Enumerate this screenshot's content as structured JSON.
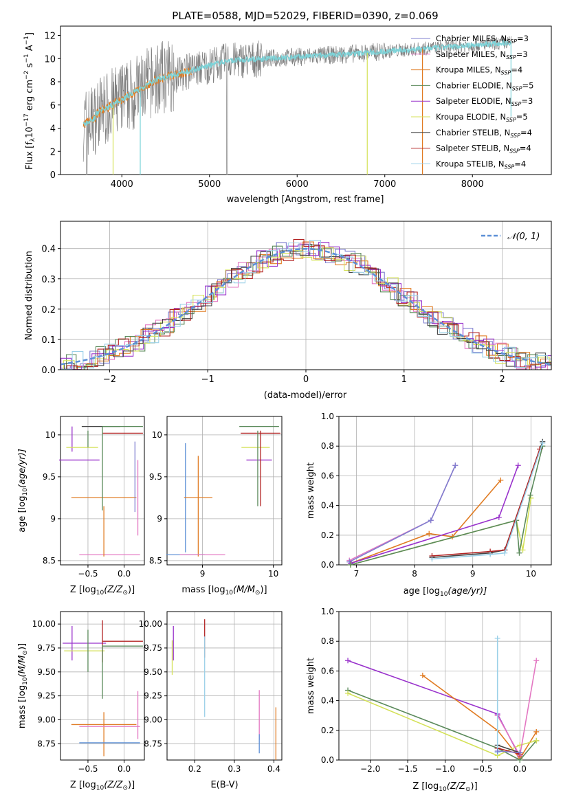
{
  "chart_data": [
    {
      "type": "line",
      "title": "PLATE=0588, MJD=52029, FIBERID=0390, z=0.069",
      "xlabel": "wavelength [Angstrom, rest frame]",
      "ylabel_main": "Flux [f",
      "ylabel_lambda": "λ",
      "ylabel_rest": "10",
      "ylabel_exp1": "−17",
      "ylabel_mid": " erg cm",
      "ylabel_exp2": "−2",
      "ylabel_s": " s",
      "ylabel_exp3": "−1",
      "ylabel_A": " A",
      "ylabel_exp4": "−1",
      "ylabel_end": "]",
      "xlim": [
        3300,
        8900
      ],
      "ylim": [
        0,
        12.8
      ],
      "xticks": [
        4000,
        5000,
        6000,
        7000,
        8000
      ],
      "yticks": [
        0,
        2,
        4,
        6,
        8,
        10,
        12
      ],
      "legend_position": "right",
      "series": [
        {
          "name": "Chabrier MILES, N",
          "sub": "SSP",
          "suffix": "=3",
          "color": "#7f7fcf"
        },
        {
          "name": "Salpeter MILES, N",
          "sub": "SSP",
          "suffix": "=3",
          "color": "#e377c2"
        },
        {
          "name": "Kroupa MILES, N",
          "sub": "SSP",
          "suffix": "=4",
          "color": "#e07b22"
        },
        {
          "name": "Chabrier ELODIE, N",
          "sub": "SSP",
          "suffix": "=5",
          "color": "#5b8a5b"
        },
        {
          "name": "Salpeter ELODIE, N",
          "sub": "SSP",
          "suffix": "=3",
          "color": "#9932cc"
        },
        {
          "name": "Kroupa ELODIE, N",
          "sub": "SSP",
          "suffix": "=5",
          "color": "#d4e157"
        },
        {
          "name": "Chabrier STELIB, N",
          "sub": "SSP",
          "suffix": "=4",
          "color": "#444444"
        },
        {
          "name": "Salpeter STELIB, N",
          "sub": "SSP",
          "suffix": "=4",
          "color": "#b22222"
        },
        {
          "name": "Kroupa STELIB, N",
          "sub": "SSP",
          "suffix": "=4",
          "color": "#9ad0e8"
        }
      ],
      "data_color": "#808080",
      "model_color": "#7dd3d8"
    },
    {
      "type": "line",
      "xlabel": "(data-model)/error",
      "ylabel": "Normed distribution",
      "xlim": [
        -2.5,
        2.5
      ],
      "ylim": [
        0,
        0.49
      ],
      "xticks": [
        -2,
        -1,
        0,
        1,
        2
      ],
      "yticks": [
        0.0,
        0.1,
        0.2,
        0.3,
        0.4
      ],
      "grid": true,
      "legend_label": "𝒩(0, 1)",
      "legend_position": "top-right",
      "gaussian_color": "#5b8fd6",
      "hist_colors": [
        "#7f7fcf",
        "#e377c2",
        "#e07b22",
        "#5b8a5b",
        "#9932cc",
        "#d4e157",
        "#444444",
        "#b22222",
        "#9ad0e8"
      ]
    },
    {
      "type": "scatter",
      "xlabel": "Z [log",
      "xlabel_sub": "10",
      "xlabel_rest": "(Z/Z",
      "xlabel_sun": "⊙",
      "xlabel_end": ")]",
      "ylabel": "age  [log",
      "ylabel_sub": "10",
      "ylabel_rest": "(age/yr)]",
      "xlim": [
        -0.88,
        0.28
      ],
      "ylim": [
        8.45,
        10.22
      ],
      "xticks": [
        -0.5,
        0.0
      ],
      "xtick_labels": [
        "−0.5",
        "0.0"
      ],
      "yticks": [
        8.5,
        9.0,
        9.5,
        10.0
      ],
      "grid": true,
      "points": [
        {
          "x": 0.19,
          "y": 9.25,
          "xerr": 0.0,
          "yerr": 0.45,
          "color": "#e377c2"
        },
        {
          "x": -0.2,
          "y": 8.57,
          "xerr": 0.42,
          "yerr": 0.0,
          "color": "#e377c2"
        },
        {
          "x": -0.28,
          "y": 9.25,
          "xerr": 0.45,
          "yerr": 0.0,
          "color": "#e07b22"
        },
        {
          "x": -0.28,
          "y": 8.85,
          "xerr": 0.0,
          "yerr": 0.3,
          "color": "#e07b22"
        },
        {
          "x": -0.72,
          "y": 9.95,
          "xerr": 0.0,
          "yerr": 0.15,
          "color": "#9932cc"
        },
        {
          "x": -0.62,
          "y": 9.7,
          "xerr": 0.28,
          "yerr": 0.0,
          "color": "#9932cc"
        },
        {
          "x": -0.58,
          "y": 9.85,
          "xerr": 0.22,
          "yerr": 0.0,
          "color": "#d4e157"
        },
        {
          "x": -0.5,
          "y": 9.95,
          "xerr": 0.0,
          "yerr": 0.1,
          "color": "#5b8a5b"
        },
        {
          "x": -0.32,
          "y": 10.1,
          "xerr": 0.0,
          "yerr": 0.0,
          "color": "#444444"
        },
        {
          "x": -0.02,
          "y": 10.02,
          "xerr": 0.28,
          "yerr": 0.0,
          "color": "#b22222"
        },
        {
          "x": -0.02,
          "y": 10.1,
          "xerr": 0.28,
          "yerr": 0.0,
          "color": "#5b8a5b"
        },
        {
          "x": -0.3,
          "y": 9.6,
          "xerr": 0.0,
          "yerr": 0.5,
          "color": "#5b8a5b"
        },
        {
          "x": 0.15,
          "y": 9.5,
          "xerr": 0.0,
          "yerr": 0.42,
          "color": "#7f7fcf"
        }
      ]
    },
    {
      "type": "scatter",
      "xlabel": "mass [log",
      "xlabel_sub": "10",
      "xlabel_rest": "(M/M",
      "xlabel_sun": "⊙",
      "xlabel_end": ")]",
      "xlim": [
        8.5,
        10.12
      ],
      "ylim": [
        8.45,
        10.22
      ],
      "xticks": [
        9,
        10
      ],
      "yticks": [
        8.5,
        9.0,
        9.5,
        10.0
      ],
      "grid": true,
      "points": [
        {
          "x": 8.76,
          "y": 9.25,
          "xerr": 0.0,
          "yerr": 0.65,
          "color": "#5b8fd6"
        },
        {
          "x": 8.76,
          "y": 8.57,
          "xerr": 0.0,
          "yerr": 0.0,
          "color": "#5b8fd6"
        },
        {
          "x": 8.94,
          "y": 9.25,
          "xerr": 0.2,
          "yerr": 0.0,
          "color": "#e07b22"
        },
        {
          "x": 8.94,
          "y": 9.15,
          "xerr": 0.0,
          "yerr": 0.6,
          "color": "#e07b22"
        },
        {
          "x": 9.0,
          "y": 8.57,
          "xerr": 0.32,
          "yerr": 0.0,
          "color": "#e377c2"
        },
        {
          "x": 9.75,
          "y": 9.85,
          "xerr": 0.2,
          "yerr": 0.0,
          "color": "#d4e157"
        },
        {
          "x": 9.8,
          "y": 9.7,
          "xerr": 0.18,
          "yerr": 0.0,
          "color": "#9932cc"
        },
        {
          "x": 9.8,
          "y": 10.1,
          "xerr": 0.28,
          "yerr": 0.0,
          "color": "#5b8a5b"
        },
        {
          "x": 9.82,
          "y": 10.02,
          "xerr": 0.28,
          "yerr": 0.0,
          "color": "#b22222"
        },
        {
          "x": 9.78,
          "y": 9.6,
          "xerr": 0.0,
          "yerr": 0.45,
          "color": "#5b8a5b"
        },
        {
          "x": 9.82,
          "y": 9.6,
          "xerr": 0.0,
          "yerr": 0.45,
          "color": "#b22222"
        }
      ]
    },
    {
      "type": "line",
      "xlabel": "age  [log",
      "xlabel_sub": "10",
      "xlabel_rest": "(age/yr)]",
      "ylabel": "mass weight",
      "xlim": [
        6.7,
        10.35
      ],
      "ylim": [
        0,
        1.0
      ],
      "xticks": [
        7,
        8,
        9,
        10
      ],
      "yticks": [
        0.0,
        0.2,
        0.4,
        0.6,
        0.8,
        1.0
      ],
      "grid": true,
      "series": [
        {
          "color": "#e377c2",
          "x": [
            6.88,
            8.28,
            8.7
          ],
          "y": [
            0.03,
            0.3,
            0.67
          ]
        },
        {
          "color": "#7f7fcf",
          "x": [
            6.88,
            8.28,
            8.7
          ],
          "y": [
            0.02,
            0.3,
            0.67
          ]
        },
        {
          "color": "#e07b22",
          "x": [
            6.9,
            8.25,
            8.65,
            9.48
          ],
          "y": [
            0.01,
            0.21,
            0.19,
            0.57
          ]
        },
        {
          "color": "#9932cc",
          "x": [
            6.9,
            9.45,
            9.78
          ],
          "y": [
            0.01,
            0.32,
            0.67
          ]
        },
        {
          "color": "#d4e157",
          "x": [
            6.9,
            9.75,
            9.86,
            10.0
          ],
          "y": [
            0.0,
            0.3,
            0.1,
            0.45
          ]
        },
        {
          "color": "#5b8a5b",
          "x": [
            6.9,
            9.75,
            9.8,
            9.99,
            10.2
          ],
          "y": [
            0.0,
            0.3,
            0.08,
            0.47,
            0.8
          ]
        },
        {
          "color": "#444444",
          "x": [
            8.3,
            9.3,
            9.55,
            10.2
          ],
          "y": [
            0.05,
            0.08,
            0.1,
            0.83
          ]
        },
        {
          "color": "#b22222",
          "x": [
            8.3,
            9.3,
            9.55,
            10.15
          ],
          "y": [
            0.06,
            0.09,
            0.1,
            0.78
          ]
        },
        {
          "color": "#9ad0e8",
          "x": [
            8.3,
            9.3,
            9.55,
            10.2
          ],
          "y": [
            0.04,
            0.07,
            0.08,
            0.82
          ]
        }
      ]
    },
    {
      "type": "scatter",
      "xlabel": "Z [log",
      "xlabel_sub": "10",
      "xlabel_rest": "(Z/Z",
      "xlabel_sun": "⊙",
      "xlabel_end": ")]",
      "ylabel": "mass [log",
      "ylabel_sub": "10",
      "ylabel_rest": "(M/M",
      "ylabel_sun": "⊙",
      "ylabel_end": ")]",
      "xlim": [
        -0.88,
        0.28
      ],
      "ylim": [
        8.58,
        10.13
      ],
      "xticks": [
        -0.5,
        0.0
      ],
      "xtick_labels": [
        "−0.5",
        "0.0"
      ],
      "yticks": [
        8.75,
        9.0,
        9.25,
        9.5,
        9.75,
        10.0
      ],
      "ytick_labels": [
        "8.75",
        "9.00",
        "9.25",
        "9.50",
        "9.75",
        "10.00"
      ],
      "grid": true,
      "points": [
        {
          "x": -0.72,
          "y": 9.8,
          "xerr": 0.0,
          "yerr": 0.18,
          "color": "#9932cc"
        },
        {
          "x": -0.55,
          "y": 9.8,
          "xerr": 0.3,
          "yerr": 0.0,
          "color": "#9932cc"
        },
        {
          "x": -0.55,
          "y": 9.72,
          "xerr": 0.28,
          "yerr": 0.0,
          "color": "#d4e157"
        },
        {
          "x": -0.5,
          "y": 9.72,
          "xerr": 0.0,
          "yerr": 0.22,
          "color": "#5b8a5b"
        },
        {
          "x": -0.3,
          "y": 9.82,
          "xerr": 0.0,
          "yerr": 0.22,
          "color": "#b22222"
        },
        {
          "x": -0.02,
          "y": 9.82,
          "xerr": 0.28,
          "yerr": 0.0,
          "color": "#b22222"
        },
        {
          "x": -0.02,
          "y": 9.77,
          "xerr": 0.28,
          "yerr": 0.0,
          "color": "#5b8a5b"
        },
        {
          "x": -0.3,
          "y": 9.5,
          "xerr": 0.0,
          "yerr": 0.28,
          "color": "#5b8a5b"
        },
        {
          "x": 0.19,
          "y": 9.05,
          "xerr": 0.0,
          "yerr": 0.25,
          "color": "#e377c2"
        },
        {
          "x": -0.28,
          "y": 8.95,
          "xerr": 0.45,
          "yerr": 0.0,
          "color": "#e07b22"
        },
        {
          "x": -0.28,
          "y": 8.85,
          "xerr": 0.0,
          "yerr": 0.23,
          "color": "#e07b22"
        },
        {
          "x": -0.2,
          "y": 8.93,
          "xerr": 0.42,
          "yerr": 0.0,
          "color": "#e377c2"
        },
        {
          "x": -0.2,
          "y": 8.76,
          "xerr": 0.42,
          "yerr": 0.0,
          "color": "#5b8fd6"
        }
      ]
    },
    {
      "type": "scatter",
      "xlabel": "E(B-V)",
      "xlim": [
        0.13,
        0.42
      ],
      "ylim": [
        8.58,
        10.13
      ],
      "xticks": [
        0.2,
        0.3,
        0.4
      ],
      "yticks": [
        8.75,
        9.0,
        9.25,
        9.5,
        9.75,
        10.0
      ],
      "ytick_labels": [
        "8.75",
        "9.00",
        "9.25",
        "9.50",
        "9.75",
        "10.00"
      ],
      "grid": true,
      "points": [
        {
          "x": 0.146,
          "y": 9.8,
          "xerr": 0.0,
          "yerr": 0.18,
          "color": "#9932cc"
        },
        {
          "x": 0.143,
          "y": 9.65,
          "xerr": 0.0,
          "yerr": 0.18,
          "color": "#d4e157"
        },
        {
          "x": 0.225,
          "y": 9.85,
          "xerr": 0.0,
          "yerr": 0.2,
          "color": "#b22222"
        },
        {
          "x": 0.225,
          "y": 9.45,
          "xerr": 0.0,
          "yerr": 0.42,
          "color": "#9ad0e8"
        },
        {
          "x": 0.363,
          "y": 9.05,
          "xerr": 0.0,
          "yerr": 0.26,
          "color": "#e377c2"
        },
        {
          "x": 0.363,
          "y": 8.75,
          "xerr": 0.0,
          "yerr": 0.1,
          "color": "#5b8fd6"
        },
        {
          "x": 0.405,
          "y": 8.85,
          "xerr": 0.0,
          "yerr": 0.28,
          "color": "#e07b22"
        }
      ]
    },
    {
      "type": "line",
      "xlabel": "Z [log",
      "xlabel_sub": "10",
      "xlabel_rest": "(Z/Z",
      "xlabel_sun": "⊙",
      "xlabel_end": ")]",
      "ylabel": "mass weight",
      "xlim": [
        -2.42,
        0.42
      ],
      "ylim": [
        0,
        1.0
      ],
      "xticks": [
        -2.0,
        -1.5,
        -1.0,
        -0.5,
        0.0
      ],
      "xtick_labels": [
        "−2.0",
        "−1.5",
        "−1.0",
        "−0.5",
        "0.0"
      ],
      "yticks": [
        0.0,
        0.2,
        0.4,
        0.6,
        0.8,
        1.0
      ],
      "grid": true,
      "series": [
        {
          "color": "#9932cc",
          "x": [
            -2.3,
            -0.3,
            0.0
          ],
          "y": [
            0.67,
            0.31,
            0.02
          ]
        },
        {
          "color": "#e07b22",
          "x": [
            -1.3,
            -0.3,
            0.0,
            0.22
          ],
          "y": [
            0.57,
            0.2,
            0.01,
            0.19
          ]
        },
        {
          "color": "#5b8a5b",
          "x": [
            -2.3,
            -0.3,
            0.0,
            0.22
          ],
          "y": [
            0.47,
            0.08,
            0.0,
            0.13
          ]
        },
        {
          "color": "#d4e157",
          "x": [
            -2.3,
            -0.3,
            0.0,
            0.22
          ],
          "y": [
            0.45,
            0.03,
            0.1,
            0.13
          ]
        },
        {
          "color": "#e377c2",
          "x": [
            -0.3,
            0.0,
            0.22
          ],
          "y": [
            0.3,
            0.03,
            0.67
          ]
        },
        {
          "color": "#444444",
          "x": [
            -0.3,
            0.0
          ],
          "y": [
            0.1,
            0.05
          ]
        },
        {
          "color": "#b22222",
          "x": [
            -0.3,
            0.0
          ],
          "y": [
            0.08,
            0.04
          ]
        },
        {
          "color": "#9ad0e8",
          "x": [
            -0.3,
            -0.3
          ],
          "y": [
            0.05,
            0.82
          ]
        },
        {
          "color": "#7f7fcf",
          "x": [
            -0.3,
            0.0
          ],
          "y": [
            0.06,
            0.05
          ]
        }
      ]
    }
  ]
}
